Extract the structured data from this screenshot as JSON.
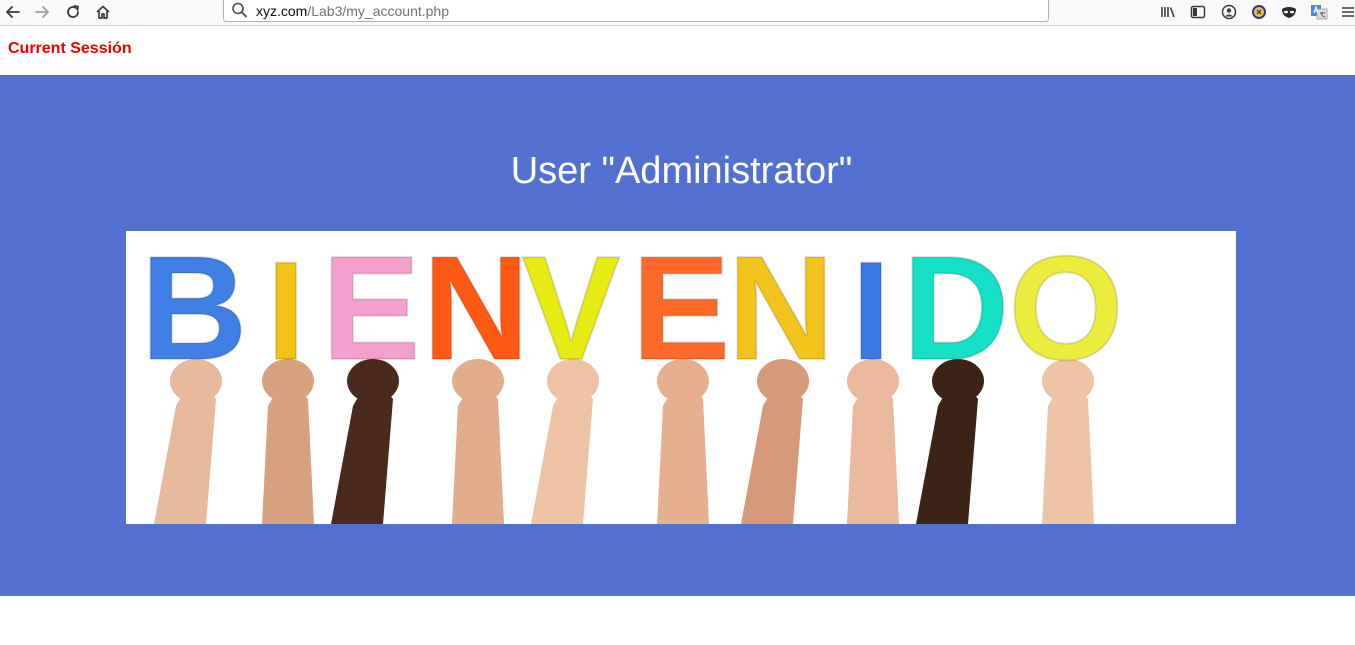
{
  "browser": {
    "url_host": "xyz.com",
    "url_path": "/Lab3/my_account.php",
    "icons": {
      "back": "arrow-left-icon",
      "forward": "arrow-right-icon",
      "reload": "reload-icon",
      "home": "home-icon",
      "search": "search-icon",
      "library": "library-icon",
      "sidebar": "sidebar-icon",
      "account": "account-icon",
      "extension1": "extension-icon",
      "extension2": "mask-icon",
      "translate": "translate-icon",
      "menu": "hamburger-menu-icon"
    }
  },
  "page": {
    "session_link": "Current Sessión",
    "title": "User \"Administrator\"",
    "banner_color": "#5170d0",
    "image": {
      "word": "BIENVENIDO",
      "letters": [
        "B",
        "I",
        "E",
        "N",
        "V",
        "E",
        "N",
        "I",
        "D",
        "O"
      ],
      "letter_colors": [
        "#3f7fe6",
        "#f2c318",
        "#f4a0cf",
        "#ff5a14",
        "#e8ea14",
        "#ff6a2a",
        "#f2c318",
        "#3a78e8",
        "#14e0c8",
        "#ecec3c"
      ]
    }
  }
}
